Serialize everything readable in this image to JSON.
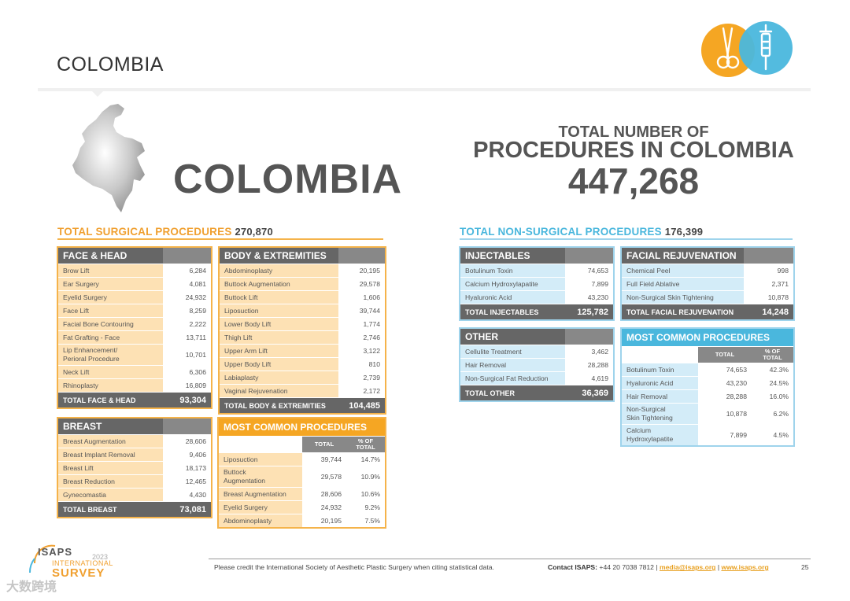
{
  "header": {
    "title": "COLOMBIA",
    "country_name": "COLOMBIA",
    "total_label_line1": "TOTAL NUMBER OF",
    "total_label_line2": "PROCEDURES IN COLOMBIA",
    "total_value": "447,268"
  },
  "sections": {
    "surgical_title": "TOTAL SURGICAL PROCEDURES",
    "surgical_total": "270,870",
    "nonsurgical_title": "TOTAL NON-SURGICAL PROCEDURES",
    "nonsurgical_total": "176,399"
  },
  "colors": {
    "orange": "#f5a623",
    "orange_light": "#fde1b4",
    "blue": "#4ab7dd",
    "blue_light": "#d3ecf8",
    "dark_gray": "#666666"
  },
  "chart_data": [
    {
      "type": "table",
      "title": "FACE & HEAD",
      "rows": [
        {
          "label": "Brow Lift",
          "value": "6,284"
        },
        {
          "label": "Ear Surgery",
          "value": "4,081"
        },
        {
          "label": "Eyelid Surgery",
          "value": "24,932"
        },
        {
          "label": "Face Lift",
          "value": "8,259"
        },
        {
          "label": "Facial Bone Contouring",
          "value": "2,222"
        },
        {
          "label": "Fat Grafting - Face",
          "value": "13,711"
        },
        {
          "label": "Lip Enhancement/\nPerioral Procedure",
          "value": "10,701"
        },
        {
          "label": "Neck Lift",
          "value": "6,306"
        },
        {
          "label": "Rhinoplasty",
          "value": "16,809"
        }
      ],
      "total_label": "TOTAL FACE & HEAD",
      "total_value": "93,304"
    },
    {
      "type": "table",
      "title": "BODY & EXTREMITIES",
      "rows": [
        {
          "label": "Abdominoplasty",
          "value": "20,195"
        },
        {
          "label": "Buttock Augmentation",
          "value": "29,578"
        },
        {
          "label": "Buttock Lift",
          "value": "1,606"
        },
        {
          "label": "Liposuction",
          "value": "39,744"
        },
        {
          "label": "Lower Body Lift",
          "value": "1,774"
        },
        {
          "label": "Thigh Lift",
          "value": "2,746"
        },
        {
          "label": "Upper Arm Lift",
          "value": "3,122"
        },
        {
          "label": "Upper Body Lift",
          "value": "810"
        },
        {
          "label": "Labiaplasty",
          "value": "2,739"
        },
        {
          "label": "Vaginal Rejuvenation",
          "value": "2,172"
        }
      ],
      "total_label": "TOTAL BODY & EXTREMITIES",
      "total_value": "104,485"
    },
    {
      "type": "table",
      "title": "BREAST",
      "rows": [
        {
          "label": "Breast Augmentation",
          "value": "28,606"
        },
        {
          "label": "Breast Implant Removal",
          "value": "9,406"
        },
        {
          "label": "Breast Lift",
          "value": "18,173"
        },
        {
          "label": "Breast Reduction",
          "value": "12,465"
        },
        {
          "label": "Gynecomastia",
          "value": "4,430"
        }
      ],
      "total_label": "TOTAL BREAST",
      "total_value": "73,081"
    },
    {
      "type": "table",
      "title": "MOST COMMON PROCEDURES",
      "columns": [
        "TOTAL",
        "% OF\nTOTAL"
      ],
      "rows": [
        {
          "label": "Liposuction",
          "total": "39,744",
          "pct": "14.7%"
        },
        {
          "label": "Buttock\nAugmentation",
          "total": "29,578",
          "pct": "10.9%"
        },
        {
          "label": "Breast Augmentation",
          "total": "28,606",
          "pct": "10.6%"
        },
        {
          "label": "Eyelid Surgery",
          "total": "24,932",
          "pct": "9.2%"
        },
        {
          "label": "Abdominoplasty",
          "total": "20,195",
          "pct": "7.5%"
        }
      ]
    },
    {
      "type": "table",
      "title": "INJECTABLES",
      "rows": [
        {
          "label": "Botulinum Toxin",
          "value": "74,653"
        },
        {
          "label": "Calcium Hydroxylapatite",
          "value": "7,899"
        },
        {
          "label": "Hyaluronic Acid",
          "value": "43,230"
        }
      ],
      "total_label": "TOTAL INJECTABLES",
      "total_value": "125,782"
    },
    {
      "type": "table",
      "title": "FACIAL REJUVENATION",
      "rows": [
        {
          "label": "Chemical Peel",
          "value": "998"
        },
        {
          "label": "Full Field Ablative",
          "value": "2,371"
        },
        {
          "label": "Non-Surgical Skin Tightening",
          "value": "10,878"
        }
      ],
      "total_label": "TOTAL FACIAL REJUVENATION",
      "total_value": "14,248"
    },
    {
      "type": "table",
      "title": "OTHER",
      "rows": [
        {
          "label": "Cellulite Treatment",
          "value": "3,462"
        },
        {
          "label": "Hair Removal",
          "value": "28,288"
        },
        {
          "label": "Non-Surgical Fat Reduction",
          "value": "4,619"
        }
      ],
      "total_label": "TOTAL OTHER",
      "total_value": "36,369"
    },
    {
      "type": "table",
      "title": "MOST COMMON PROCEDURES",
      "columns": [
        "TOTAL",
        "% OF\nTOTAL"
      ],
      "rows": [
        {
          "label": "Botulinum Toxin",
          "total": "74,653",
          "pct": "42.3%"
        },
        {
          "label": "Hyaluronic Acid",
          "total": "43,230",
          "pct": "24.5%"
        },
        {
          "label": "Hair Removal",
          "total": "28,288",
          "pct": "16.0%"
        },
        {
          "label": "Non-Surgical\nSkin Tightening",
          "total": "10,878",
          "pct": "6.2%"
        },
        {
          "label": "Calcium\nHydroxylapatite",
          "total": "7,899",
          "pct": "4.5%"
        }
      ]
    }
  ],
  "footer": {
    "credit": "Please credit the International Society of Aesthetic Plastic Surgery when citing statistical data.",
    "contact_label": "Contact ISAPS:",
    "phone": "+44 20 7038 7812",
    "email": "media@isaps.org",
    "website": "www.isaps.org",
    "separator": "|",
    "page_number": "25"
  },
  "branding": {
    "isaps": "ISAPS",
    "year": "2023",
    "international": "INTERNATIONAL",
    "survey": "SURVEY",
    "watermark": "大数跨境"
  }
}
